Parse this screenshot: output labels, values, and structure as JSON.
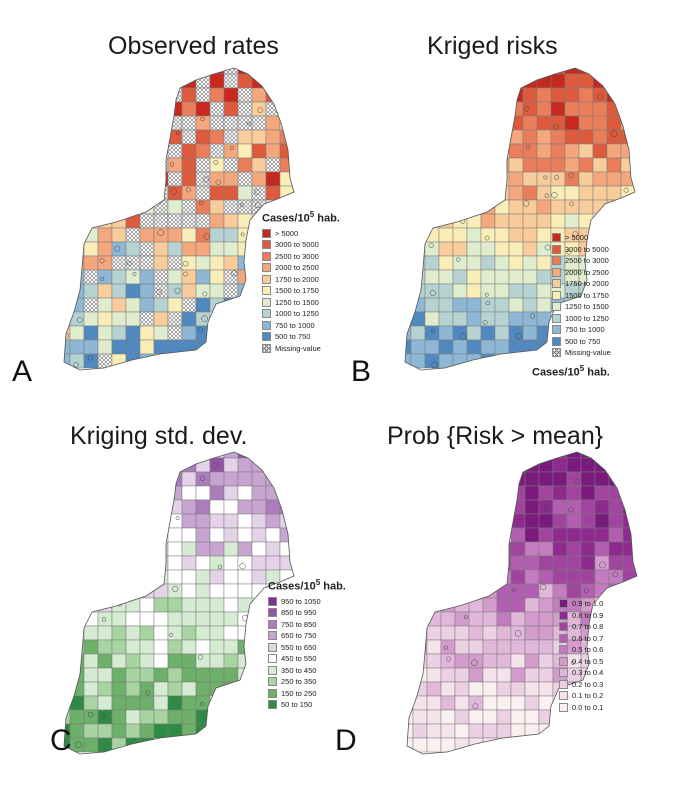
{
  "panels": [
    {
      "key": "A",
      "title": "Observed rates",
      "letter": "A",
      "legend": {
        "title_main": "Cases/10",
        "title_sup": "5",
        "title_tail": " hab.",
        "title_position": "top",
        "items": [
          {
            "label": "> 5000",
            "color": "#c8281e"
          },
          {
            "label": "3000 to 5000",
            "color": "#de5a3d"
          },
          {
            "label": "2500 to 3000",
            "color": "#ea7e5a"
          },
          {
            "label": "2000 to 2500",
            "color": "#f4a77c"
          },
          {
            "label": "1750 to 2000",
            "color": "#f8cd9b"
          },
          {
            "label": "1500 to 1750",
            "color": "#f9edb8"
          },
          {
            "label": "1250 to 1500",
            "color": "#dfeccd"
          },
          {
            "label": "1000 to 1250",
            "color": "#b6d3d1"
          },
          {
            "label": "750 to 1000",
            "color": "#8db7d4"
          },
          {
            "label": "500 to 750",
            "color": "#4f89c0"
          },
          {
            "label": "Missing-value",
            "color": "hatch"
          }
        ]
      }
    },
    {
      "key": "B",
      "title": "Kriged risks",
      "letter": "B",
      "legend": {
        "title_main": "Cases/10",
        "title_sup": "5",
        "title_tail": " hab.",
        "title_position": "bottom",
        "items": [
          {
            "label": "> 5000",
            "color": "#c8281e"
          },
          {
            "label": "3000 to 5000",
            "color": "#de5a3d"
          },
          {
            "label": "2500 to 3000",
            "color": "#ea7e5a"
          },
          {
            "label": "2000 to 2500",
            "color": "#f4a77c"
          },
          {
            "label": "1750 to 2000",
            "color": "#f8cd9b"
          },
          {
            "label": "1500 to 1750",
            "color": "#f9edb8"
          },
          {
            "label": "1250 to 1500",
            "color": "#dfeccd"
          },
          {
            "label": "1000 to 1250",
            "color": "#b6d3d1"
          },
          {
            "label": "750 to 1000",
            "color": "#8db7d4"
          },
          {
            "label": "500 to 750",
            "color": "#4f89c0"
          },
          {
            "label": "Missing-value",
            "color": "hatch"
          }
        ]
      }
    },
    {
      "key": "C",
      "title": "Kriging std. dev.",
      "letter": "C",
      "legend": {
        "title_main": "Cases/10",
        "title_sup": "5",
        "title_tail": " hab.",
        "title_position": "top",
        "items": [
          {
            "label": "950 to 1050",
            "color": "#7b3294"
          },
          {
            "label": "850 to 950",
            "color": "#9454a6"
          },
          {
            "label": "750 to 850",
            "color": "#ac7dba"
          },
          {
            "label": "650 to 750",
            "color": "#c6a5d0"
          },
          {
            "label": "550 to 650",
            "color": "#e4d2e8"
          },
          {
            "label": "450 to 550",
            "color": "#ffffff"
          },
          {
            "label": "350 to 450",
            "color": "#d5ebd2"
          },
          {
            "label": "250 to 350",
            "color": "#a8d4a2"
          },
          {
            "label": "150 to 250",
            "color": "#6cb06a"
          },
          {
            "label": "50 to 150",
            "color": "#2f8a45"
          }
        ]
      }
    },
    {
      "key": "D",
      "title": "Prob {Risk > mean}",
      "letter": "D",
      "legend": {
        "title_main": "",
        "title_sup": "",
        "title_tail": "",
        "title_position": "none",
        "items": [
          {
            "label": "0.9 to 1.0",
            "color": "#7a1a7d"
          },
          {
            "label": "0.8 to 0.9",
            "color": "#8e2a8e"
          },
          {
            "label": "0.7 to 0.8",
            "color": "#a1449f"
          },
          {
            "label": "0.6 to 0.7",
            "color": "#b35fb1"
          },
          {
            "label": "0.5 to 0.6",
            "color": "#c47cc0"
          },
          {
            "label": "0.4 to 0.5",
            "color": "#d49bcd"
          },
          {
            "label": "0.3 to 0.4",
            "color": "#e2b8da"
          },
          {
            "label": "0.2 to 0.3",
            "color": "#ecd0e4"
          },
          {
            "label": "0.1 to 0.2",
            "color": "#f5e3ec"
          },
          {
            "label": "0.0 to 0.1",
            "color": "#fbf0f0"
          }
        ]
      }
    }
  ]
}
